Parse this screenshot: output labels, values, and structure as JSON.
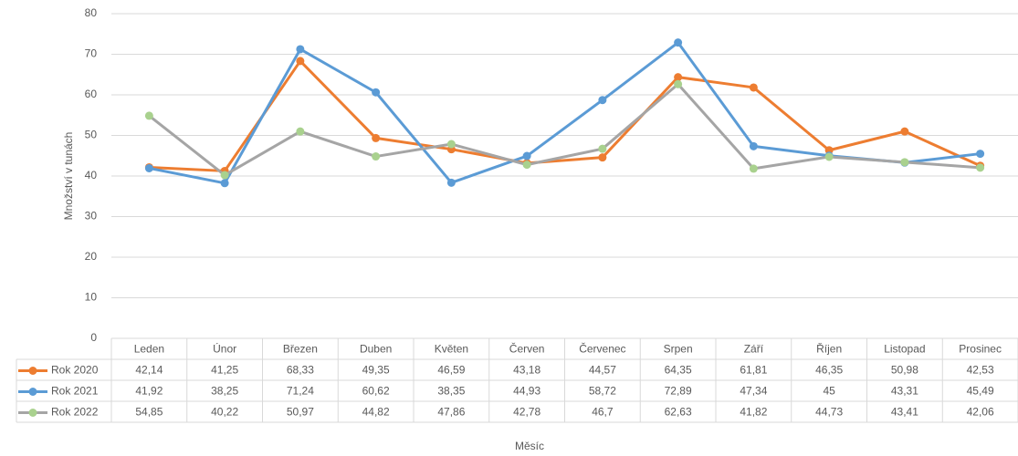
{
  "chart_data": {
    "type": "line",
    "x_label": "Měsíc",
    "y_label": "Množství v tunách",
    "categories": [
      "Leden",
      "Únor",
      "Březen",
      "Duben",
      "Květen",
      "Červen",
      "Červenec",
      "Srpen",
      "Září",
      "Říjen",
      "Listopad",
      "Prosinec"
    ],
    "series": [
      {
        "name": "Rok 2020",
        "color": "#ed7d31",
        "marker_color": "#ed7d31",
        "values": [
          42.14,
          41.25,
          68.33,
          49.35,
          46.59,
          43.18,
          44.57,
          64.35,
          61.81,
          46.35,
          50.98,
          42.53
        ],
        "value_labels": [
          "42,14",
          "41,25",
          "68,33",
          "49,35",
          "46,59",
          "43,18",
          "44,57",
          "64,35",
          "61,81",
          "46,35",
          "50,98",
          "42,53"
        ]
      },
      {
        "name": "Rok 2021",
        "color": "#5b9bd5",
        "marker_color": "#5b9bd5",
        "values": [
          41.92,
          38.25,
          71.24,
          60.62,
          38.35,
          44.93,
          58.72,
          72.89,
          47.34,
          45,
          43.31,
          45.49
        ],
        "value_labels": [
          "41,92",
          "38,25",
          "71,24",
          "60,62",
          "38,35",
          "44,93",
          "58,72",
          "72,89",
          "47,34",
          "45",
          "43,31",
          "45,49"
        ]
      },
      {
        "name": "Rok 2022",
        "color": "#a5a5a5",
        "marker_color": "#a9d18e",
        "values": [
          54.85,
          40.22,
          50.97,
          44.82,
          47.86,
          42.78,
          46.7,
          62.63,
          41.82,
          44.73,
          43.41,
          42.06
        ],
        "value_labels": [
          "54,85",
          "40,22",
          "50,97",
          "44,82",
          "47,86",
          "42,78",
          "46,7",
          "62,63",
          "41,82",
          "44,73",
          "43,41",
          "42,06"
        ]
      }
    ],
    "ylim": [
      0,
      80
    ],
    "yticks": [
      0,
      10,
      20,
      30,
      40,
      50,
      60,
      70,
      80
    ],
    "grid": true
  }
}
